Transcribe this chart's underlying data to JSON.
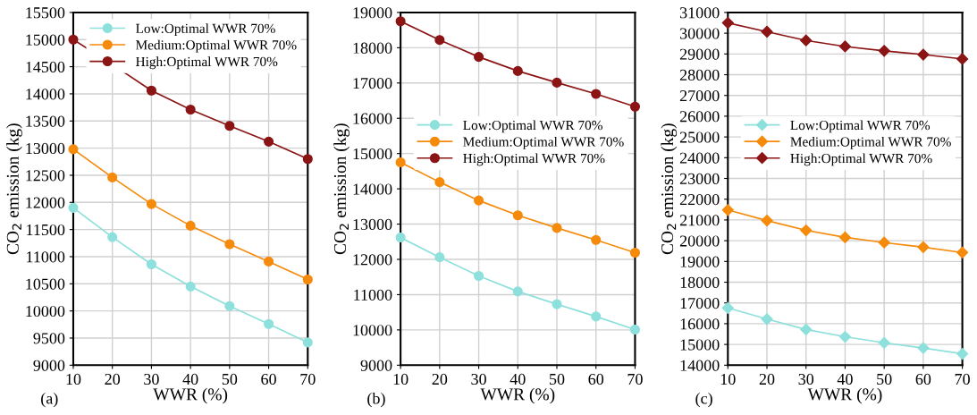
{
  "chart_data": [
    {
      "type": "line",
      "xlabel": "WWR (%)",
      "ylabel": "CO$_{2}$ emission (kg)",
      "annotations": [
        "(a)"
      ],
      "x": [
        10,
        20,
        30,
        40,
        50,
        60,
        70
      ],
      "xlim": [
        10,
        70
      ],
      "xticks": [
        10,
        20,
        30,
        40,
        50,
        60,
        70
      ],
      "ylim": [
        9000,
        15500
      ],
      "yticks": [
        9000,
        9500,
        10000,
        10500,
        11000,
        11500,
        12000,
        12500,
        13000,
        13500,
        14000,
        14500,
        15000,
        15500
      ],
      "grid": true,
      "legend": "top right",
      "marker": "circle",
      "line_style": "solid",
      "series": [
        {
          "name": "Low:Optimal WWR 70%",
          "color": "#8de0dc",
          "values": [
            11900,
            11360,
            10860,
            10450,
            10090,
            9760,
            9420
          ]
        },
        {
          "name": "Medium:Optimal WWR 70%",
          "color": "#f58a0b",
          "values": [
            12980,
            12460,
            11970,
            11570,
            11230,
            10910,
            10580
          ]
        },
        {
          "name": "High:Optimal WWR 70%",
          "color": "#8b1414",
          "values": [
            15000,
            14540,
            14060,
            13710,
            13410,
            13120,
            12800
          ]
        }
      ]
    },
    {
      "type": "line",
      "xlabel": "WWR (%)",
      "ylabel": "CO$_{2}$ emission (kg)",
      "annotations": [
        "(b)"
      ],
      "x": [
        10,
        20,
        30,
        40,
        50,
        60,
        70
      ],
      "xlim": [
        10,
        70
      ],
      "xticks": [
        10,
        20,
        30,
        40,
        50,
        60,
        70
      ],
      "ylim": [
        9000,
        19000
      ],
      "yticks": [
        9000,
        10000,
        11000,
        12000,
        13000,
        14000,
        15000,
        16000,
        17000,
        18000,
        19000
      ],
      "grid": true,
      "legend": "right",
      "marker": "circle",
      "line_style": "solid",
      "series": [
        {
          "name": "Low:Optimal WWR 70%",
          "color": "#8de0dc",
          "values": [
            12620,
            12060,
            11530,
            11090,
            10730,
            10380,
            10010
          ]
        },
        {
          "name": "Medium:Optimal WWR 70%",
          "color": "#f58a0b",
          "values": [
            14750,
            14190,
            13670,
            13250,
            12890,
            12550,
            12190
          ]
        },
        {
          "name": "High:Optimal WWR 70%",
          "color": "#8b1414",
          "values": [
            18750,
            18220,
            17740,
            17340,
            17010,
            16690,
            16330
          ]
        }
      ]
    },
    {
      "type": "line",
      "xlabel": "WWR (%)",
      "ylabel": "CO$_{2}$ emission (kg)",
      "annotations": [
        "(c)"
      ],
      "x": [
        10,
        20,
        30,
        40,
        50,
        60,
        70
      ],
      "xlim": [
        10,
        70
      ],
      "xticks": [
        10,
        20,
        30,
        40,
        50,
        60,
        70
      ],
      "ylim": [
        14000,
        31000
      ],
      "yticks": [
        14000,
        15000,
        16000,
        17000,
        18000,
        19000,
        20000,
        21000,
        22000,
        23000,
        24000,
        25000,
        26000,
        27000,
        28000,
        29000,
        30000,
        31000
      ],
      "grid": true,
      "legend": "right",
      "marker": "diamond",
      "line_style": "solid",
      "series": [
        {
          "name": "Low:Optimal WWR 70%",
          "color": "#8de0dc",
          "values": [
            16760,
            16220,
            15720,
            15370,
            15080,
            14830,
            14550
          ]
        },
        {
          "name": "Medium:Optimal WWR 70%",
          "color": "#f58a0b",
          "values": [
            21480,
            20970,
            20500,
            20160,
            19910,
            19690,
            19430
          ]
        },
        {
          "name": "High:Optimal WWR 70%",
          "color": "#8b1414",
          "values": [
            30500,
            30070,
            29650,
            29360,
            29150,
            28970,
            28760
          ]
        }
      ]
    }
  ]
}
